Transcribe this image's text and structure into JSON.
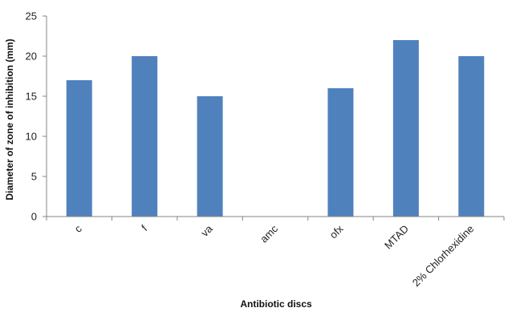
{
  "chart_data": {
    "type": "bar",
    "categories": [
      "c",
      "f",
      "va",
      "amc",
      "ofx",
      "MTAD",
      "2% Chlorhexidine"
    ],
    "values": [
      17,
      20,
      15,
      0,
      16,
      22,
      20
    ],
    "xlabel": "Antibiotic discs",
    "ylabel": "Diameter of zone of inhibition (mm)",
    "ylim": [
      0,
      25
    ],
    "yticks": [
      0,
      5,
      10,
      15,
      20,
      25
    ],
    "grid": false,
    "legend": "none",
    "bar_color": "#4F81BD"
  }
}
